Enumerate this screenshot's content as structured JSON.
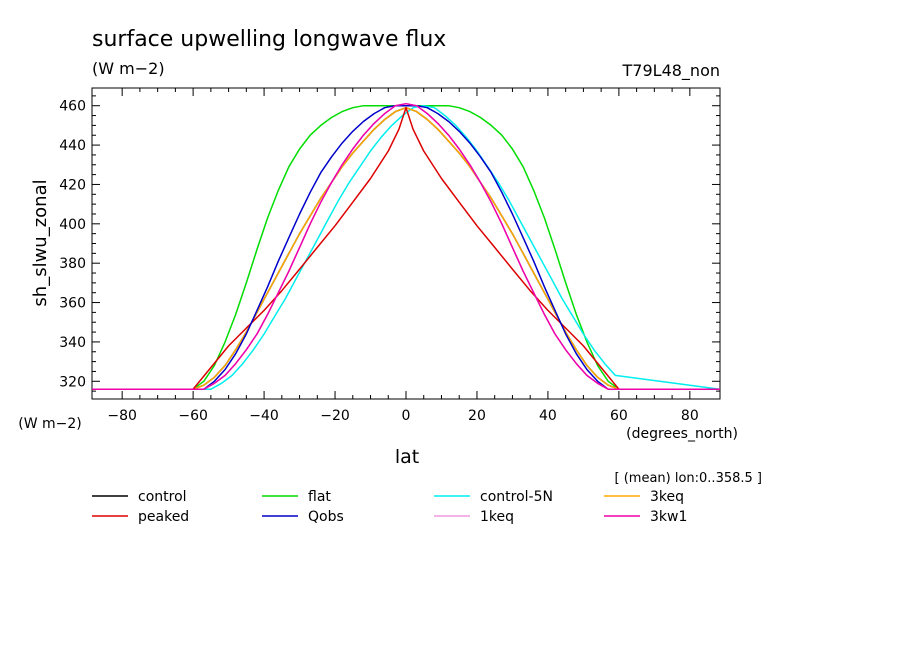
{
  "chart_data": {
    "type": "line",
    "title": "surface upwelling longwave flux",
    "subtitle": "(W m−2)",
    "run_label": "T79L48_non",
    "xlabel": "lat",
    "x_units": "(degrees_north)",
    "ylabel": "sh_slwu_zonal",
    "y_units": "(W m−2)",
    "averaging_note": "[ (mean) lon:0..358.5 ]",
    "xlim": [
      -88.5,
      88.5
    ],
    "ylim": [
      311,
      469
    ],
    "xticks": [
      -80,
      -60,
      -40,
      -20,
      0,
      20,
      40,
      60,
      80
    ],
    "yticks": [
      320,
      340,
      360,
      380,
      400,
      420,
      440,
      460
    ],
    "grid": false,
    "legend_position": "bottom",
    "series": [
      {
        "name": "control",
        "color": "#000000",
        "x": [
          -88.5,
          -60,
          -57,
          -54,
          -51,
          -48,
          -45,
          -42,
          -39,
          -36,
          -33,
          -30,
          -27,
          -24,
          -21,
          -18,
          -15,
          -12,
          -9,
          -6,
          -3,
          0,
          3,
          6,
          9,
          12,
          15,
          18,
          21,
          24,
          27,
          30,
          33,
          36,
          39,
          42,
          45,
          48,
          51,
          54,
          57,
          60,
          88.5
        ],
        "y": [
          316,
          316,
          318,
          322,
          328,
          336,
          345,
          355,
          365,
          375,
          385,
          395,
          404,
          413,
          421,
          429,
          436,
          442,
          448,
          453,
          457,
          459,
          457,
          453,
          448,
          442,
          436,
          429,
          421,
          413,
          404,
          395,
          385,
          375,
          365,
          355,
          345,
          336,
          328,
          322,
          318,
          316,
          316
        ]
      },
      {
        "name": "flat",
        "color": "#00dd00",
        "x": [
          -88.5,
          -60,
          -57,
          -54,
          -51,
          -48,
          -45,
          -42,
          -39,
          -36,
          -33,
          -30,
          -27,
          -24,
          -21,
          -18,
          -15,
          -12,
          -9,
          -6,
          -3,
          0,
          3,
          6,
          9,
          12,
          15,
          18,
          21,
          24,
          27,
          30,
          33,
          36,
          39,
          42,
          45,
          48,
          51,
          54,
          57,
          60,
          88.5
        ],
        "y": [
          316,
          316,
          320,
          328,
          340,
          354,
          370,
          387,
          403,
          417,
          429,
          438,
          445,
          450,
          454,
          457,
          459,
          460,
          460,
          460,
          460,
          460,
          460,
          460,
          460,
          460,
          459,
          457,
          454,
          450,
          445,
          438,
          429,
          417,
          403,
          387,
          370,
          354,
          340,
          328,
          320,
          316,
          316
        ]
      },
      {
        "name": "control-5N",
        "color": "#00eeee",
        "x": [
          -88.5,
          -55,
          -52,
          -49,
          -46,
          -43,
          -40,
          -37,
          -34,
          -31,
          -28,
          -25,
          -22,
          -19,
          -16,
          -13,
          -10,
          -7,
          -4,
          -1,
          2,
          5,
          8,
          11,
          14,
          17,
          20,
          23,
          26,
          29,
          32,
          35,
          38,
          41,
          44,
          47,
          50,
          53,
          56,
          59,
          88.5
        ],
        "y": [
          316,
          316,
          319,
          323,
          329,
          336,
          344,
          353,
          362,
          372,
          382,
          392,
          402,
          412,
          421,
          429,
          437,
          444,
          450,
          455,
          459,
          460,
          459,
          455,
          450,
          444,
          437,
          429,
          421,
          412,
          402,
          392,
          382,
          372,
          362,
          353,
          344,
          336,
          329,
          323,
          316
        ]
      },
      {
        "name": "3keq",
        "color": "#ffaa00",
        "x": [
          -88.5,
          -60,
          -57,
          -54,
          -51,
          -48,
          -45,
          -42,
          -39,
          -36,
          -33,
          -30,
          -27,
          -24,
          -21,
          -18,
          -15,
          -12,
          -9,
          -6,
          -3,
          0,
          3,
          6,
          9,
          12,
          15,
          18,
          21,
          24,
          27,
          30,
          33,
          36,
          39,
          42,
          45,
          48,
          51,
          54,
          57,
          60,
          88.5
        ],
        "y": [
          316,
          316,
          318,
          322,
          328,
          336,
          345,
          355,
          365,
          375,
          385,
          395,
          404,
          413,
          421,
          429,
          436,
          442,
          448,
          453,
          457,
          459,
          457,
          453,
          448,
          442,
          436,
          429,
          421,
          413,
          404,
          395,
          385,
          375,
          365,
          355,
          345,
          336,
          328,
          322,
          318,
          316,
          316
        ]
      },
      {
        "name": "peaked",
        "color": "#dd0000",
        "x": [
          -88.5,
          -60,
          -55,
          -50,
          -45,
          -40,
          -35,
          -30,
          -25,
          -20,
          -15,
          -10,
          -5,
          -2,
          0,
          2,
          5,
          10,
          15,
          20,
          25,
          30,
          35,
          40,
          45,
          50,
          55,
          60,
          88.5
        ],
        "y": [
          316,
          316,
          327,
          338,
          347,
          356,
          366,
          377,
          388,
          399,
          411,
          423,
          437,
          448,
          459,
          448,
          437,
          423,
          411,
          399,
          388,
          377,
          366,
          356,
          347,
          338,
          327,
          316,
          316
        ]
      },
      {
        "name": "Qobs",
        "color": "#0000cc",
        "x": [
          -88.5,
          -57,
          -54,
          -51,
          -48,
          -45,
          -42,
          -39,
          -36,
          -33,
          -30,
          -27,
          -24,
          -21,
          -18,
          -15,
          -12,
          -9,
          -6,
          -3,
          0,
          3,
          6,
          9,
          12,
          15,
          18,
          21,
          24,
          27,
          30,
          33,
          36,
          39,
          42,
          45,
          48,
          51,
          54,
          57,
          60,
          88.5
        ],
        "y": [
          316,
          316,
          320,
          326,
          334,
          344,
          356,
          368,
          381,
          393,
          405,
          416,
          426,
          434,
          441,
          447,
          452,
          456,
          459,
          460,
          460,
          460,
          459,
          456,
          452,
          447,
          441,
          434,
          426,
          416,
          405,
          393,
          381,
          368,
          356,
          344,
          334,
          326,
          320,
          316,
          316,
          316
        ]
      },
      {
        "name": "1keq",
        "color": "#ee99dd",
        "x": [
          -88.5,
          -57,
          -54,
          -51,
          -48,
          -45,
          -42,
          -39,
          -36,
          -33,
          -30,
          -27,
          -24,
          -21,
          -18,
          -15,
          -12,
          -9,
          -6,
          -3,
          0,
          3,
          6,
          9,
          12,
          15,
          18,
          21,
          24,
          27,
          30,
          33,
          36,
          39,
          42,
          45,
          48,
          51,
          54,
          57,
          60,
          88.5
        ],
        "y": [
          316,
          316,
          319,
          323,
          329,
          336,
          344,
          354,
          365,
          376,
          388,
          400,
          411,
          421,
          430,
          438,
          445,
          451,
          456,
          460,
          461,
          460,
          456,
          451,
          445,
          438,
          430,
          421,
          411,
          400,
          388,
          376,
          365,
          354,
          344,
          336,
          329,
          323,
          319,
          316,
          316,
          316
        ]
      },
      {
        "name": "3kw1",
        "color": "#ee00aa",
        "x": [
          -88.5,
          -57,
          -54,
          -51,
          -48,
          -45,
          -42,
          -39,
          -36,
          -33,
          -30,
          -27,
          -24,
          -21,
          -18,
          -15,
          -12,
          -9,
          -6,
          -3,
          0,
          3,
          6,
          9,
          12,
          15,
          18,
          21,
          24,
          27,
          30,
          33,
          36,
          39,
          42,
          45,
          48,
          51,
          54,
          57,
          60,
          88.5
        ],
        "y": [
          316,
          316,
          319,
          323,
          329,
          336,
          344,
          354,
          365,
          376,
          388,
          400,
          411,
          421,
          430,
          438,
          445,
          451,
          456,
          460,
          461,
          460,
          456,
          451,
          445,
          438,
          430,
          421,
          411,
          400,
          388,
          376,
          365,
          354,
          344,
          336,
          329,
          323,
          319,
          316,
          316,
          316
        ]
      }
    ],
    "legend_order": [
      "control",
      "peaked",
      "flat",
      "Qobs",
      "control-5N",
      "1keq",
      "3keq",
      "3kw1"
    ]
  }
}
